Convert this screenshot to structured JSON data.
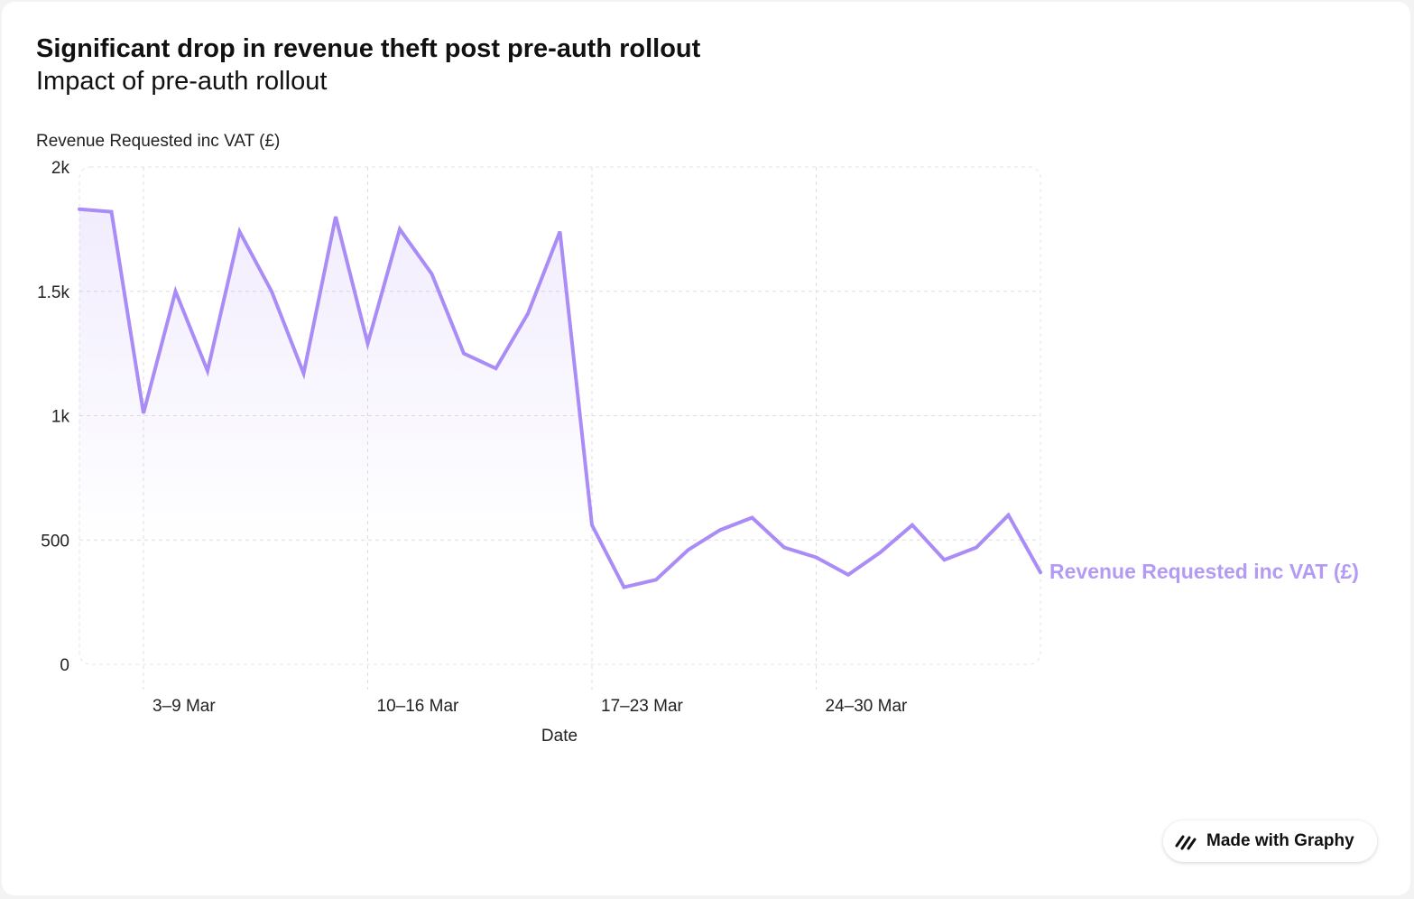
{
  "title": "Significant drop in revenue theft post pre-auth rollout",
  "subtitle": "Impact of pre-auth rollout",
  "badge": {
    "label": "Made with Graphy",
    "icon": "graphy-logo-icon"
  },
  "colors": {
    "line": "#a98cf5",
    "label": "#b39af5",
    "grid": "#dedede",
    "text": "#222222"
  },
  "chart_data": {
    "type": "area",
    "title": "Significant drop in revenue theft post pre-auth rollout",
    "subtitle": "Impact of pre-auth rollout",
    "xlabel": "Date",
    "ylabel": "Revenue Requested inc VAT (£)",
    "ylim": [
      0,
      2000
    ],
    "yticks": [
      0,
      500,
      1000,
      1500,
      2000
    ],
    "ytick_labels": [
      "0",
      "500",
      "1k",
      "1.5k",
      "2k"
    ],
    "x_tick_labels": [
      "3–9 Mar",
      "10–16 Mar",
      "17–23 Mar",
      "24–30 Mar"
    ],
    "grid": true,
    "legend": "end-of-line label",
    "x": [
      "1 Mar",
      "2 Mar",
      "3 Mar",
      "4 Mar",
      "5 Mar",
      "6 Mar",
      "7 Mar",
      "8 Mar",
      "9 Mar",
      "10 Mar",
      "11 Mar",
      "12 Mar",
      "13 Mar",
      "14 Mar",
      "15 Mar",
      "16 Mar",
      "17 Mar",
      "18 Mar",
      "19 Mar",
      "20 Mar",
      "21 Mar",
      "22 Mar",
      "23 Mar",
      "24 Mar",
      "25 Mar",
      "26 Mar",
      "27 Mar",
      "28 Mar",
      "29 Mar",
      "30 Mar",
      "31 Mar"
    ],
    "series": [
      {
        "name": "Revenue Requested inc VAT (£)",
        "values": [
          1830,
          1820,
          1010,
          1500,
          1180,
          1740,
          1500,
          1170,
          1800,
          1290,
          1750,
          1570,
          1250,
          1190,
          1410,
          1740,
          560,
          310,
          340,
          460,
          540,
          590,
          470,
          430,
          360,
          450,
          560,
          420,
          470,
          600,
          370
        ]
      }
    ]
  }
}
